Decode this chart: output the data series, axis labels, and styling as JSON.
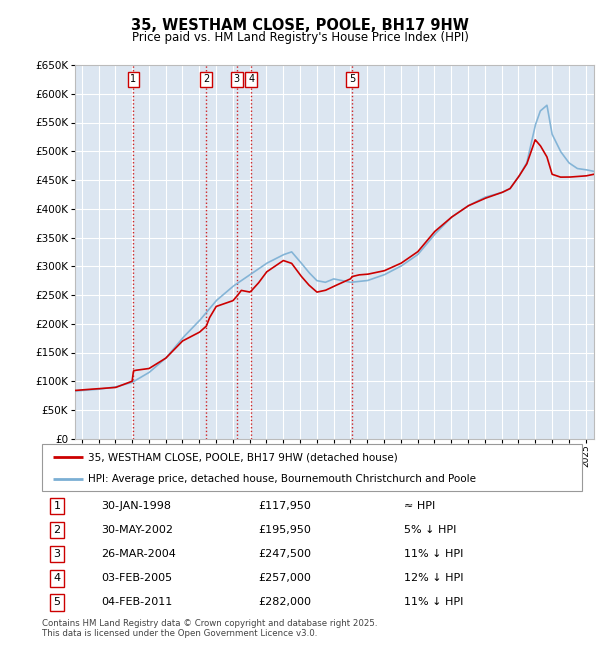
{
  "title": "35, WESTHAM CLOSE, POOLE, BH17 9HW",
  "subtitle": "Price paid vs. HM Land Registry's House Price Index (HPI)",
  "ytick_values": [
    0,
    50000,
    100000,
    150000,
    200000,
    250000,
    300000,
    350000,
    400000,
    450000,
    500000,
    550000,
    600000,
    650000
  ],
  "xlim_start": 1994.6,
  "xlim_end": 2025.5,
  "ylim_min": 0,
  "ylim_max": 650000,
  "legend1_label": "35, WESTHAM CLOSE, POOLE, BH17 9HW (detached house)",
  "legend2_label": "HPI: Average price, detached house, Bournemouth Christchurch and Poole",
  "legend1_color": "#cc0000",
  "legend2_color": "#7bafd4",
  "transactions": [
    {
      "num": 1,
      "date": "30-JAN-1998",
      "price": 117950,
      "note": "≈ HPI",
      "year": 1998.08
    },
    {
      "num": 2,
      "date": "30-MAY-2002",
      "price": 195950,
      "note": "5% ↓ HPI",
      "year": 2002.42
    },
    {
      "num": 3,
      "date": "26-MAR-2004",
      "price": 247500,
      "note": "11% ↓ HPI",
      "year": 2004.23
    },
    {
      "num": 4,
      "date": "03-FEB-2005",
      "price": 257000,
      "note": "12% ↓ HPI",
      "year": 2005.09
    },
    {
      "num": 5,
      "date": "04-FEB-2011",
      "price": 282000,
      "note": "11% ↓ HPI",
      "year": 2011.09
    }
  ],
  "footnote": "Contains HM Land Registry data © Crown copyright and database right 2025.\nThis data is licensed under the Open Government Licence v3.0.",
  "bg_color": "#dce6f1",
  "plot_bg": "#ffffff",
  "grid_color": "#ffffff",
  "vline_color": "#cc0000",
  "hpi_line_color": "#7bafd4",
  "price_line_color": "#cc0000",
  "hpi_pts_x": [
    1994.6,
    1995,
    1996,
    1997,
    1998,
    1999,
    2000,
    2001,
    2002,
    2003,
    2004,
    2005,
    2006,
    2007,
    2007.5,
    2008,
    2008.5,
    2009,
    2009.5,
    2010,
    2011,
    2012,
    2013,
    2014,
    2015,
    2016,
    2017,
    2018,
    2019,
    2020,
    2020.5,
    2021,
    2021.5,
    2022,
    2022.3,
    2022.7,
    2023,
    2023.5,
    2024,
    2024.5,
    2025,
    2025.5
  ],
  "hpi_pts_y": [
    83000,
    84000,
    86000,
    90000,
    98000,
    115000,
    140000,
    175000,
    205000,
    240000,
    265000,
    285000,
    305000,
    320000,
    325000,
    308000,
    290000,
    275000,
    272000,
    278000,
    272000,
    275000,
    285000,
    300000,
    320000,
    355000,
    385000,
    405000,
    420000,
    428000,
    435000,
    455000,
    480000,
    545000,
    570000,
    580000,
    530000,
    500000,
    480000,
    470000,
    468000,
    465000
  ],
  "price_pts_x": [
    1994.6,
    1995,
    1996,
    1997,
    1998.0,
    1998.08,
    1998.2,
    1999,
    2000,
    2001,
    2002.0,
    2002.42,
    2002.6,
    2003,
    2004.0,
    2004.23,
    2004.5,
    2005.0,
    2005.09,
    2005.5,
    2006,
    2007,
    2007.5,
    2008,
    2008.5,
    2009,
    2009.5,
    2010,
    2011.0,
    2011.09,
    2011.5,
    2012,
    2013,
    2014,
    2015,
    2016,
    2017,
    2018,
    2019,
    2020,
    2020.5,
    2021,
    2021.5,
    2022,
    2022.3,
    2022.7,
    2023,
    2023.5,
    2024,
    2024.5,
    2025,
    2025.5
  ],
  "price_pts_y": [
    84000,
    85000,
    87000,
    89000,
    100000,
    117950,
    119000,
    122000,
    140000,
    170000,
    185000,
    195950,
    210000,
    230000,
    240000,
    247500,
    258000,
    255000,
    257000,
    270000,
    290000,
    310000,
    305000,
    285000,
    268000,
    255000,
    258000,
    265000,
    278000,
    282000,
    285000,
    286000,
    292000,
    305000,
    325000,
    360000,
    385000,
    405000,
    418000,
    428000,
    435000,
    455000,
    478000,
    520000,
    510000,
    490000,
    460000,
    455000,
    455000,
    456000,
    457000,
    460000
  ]
}
